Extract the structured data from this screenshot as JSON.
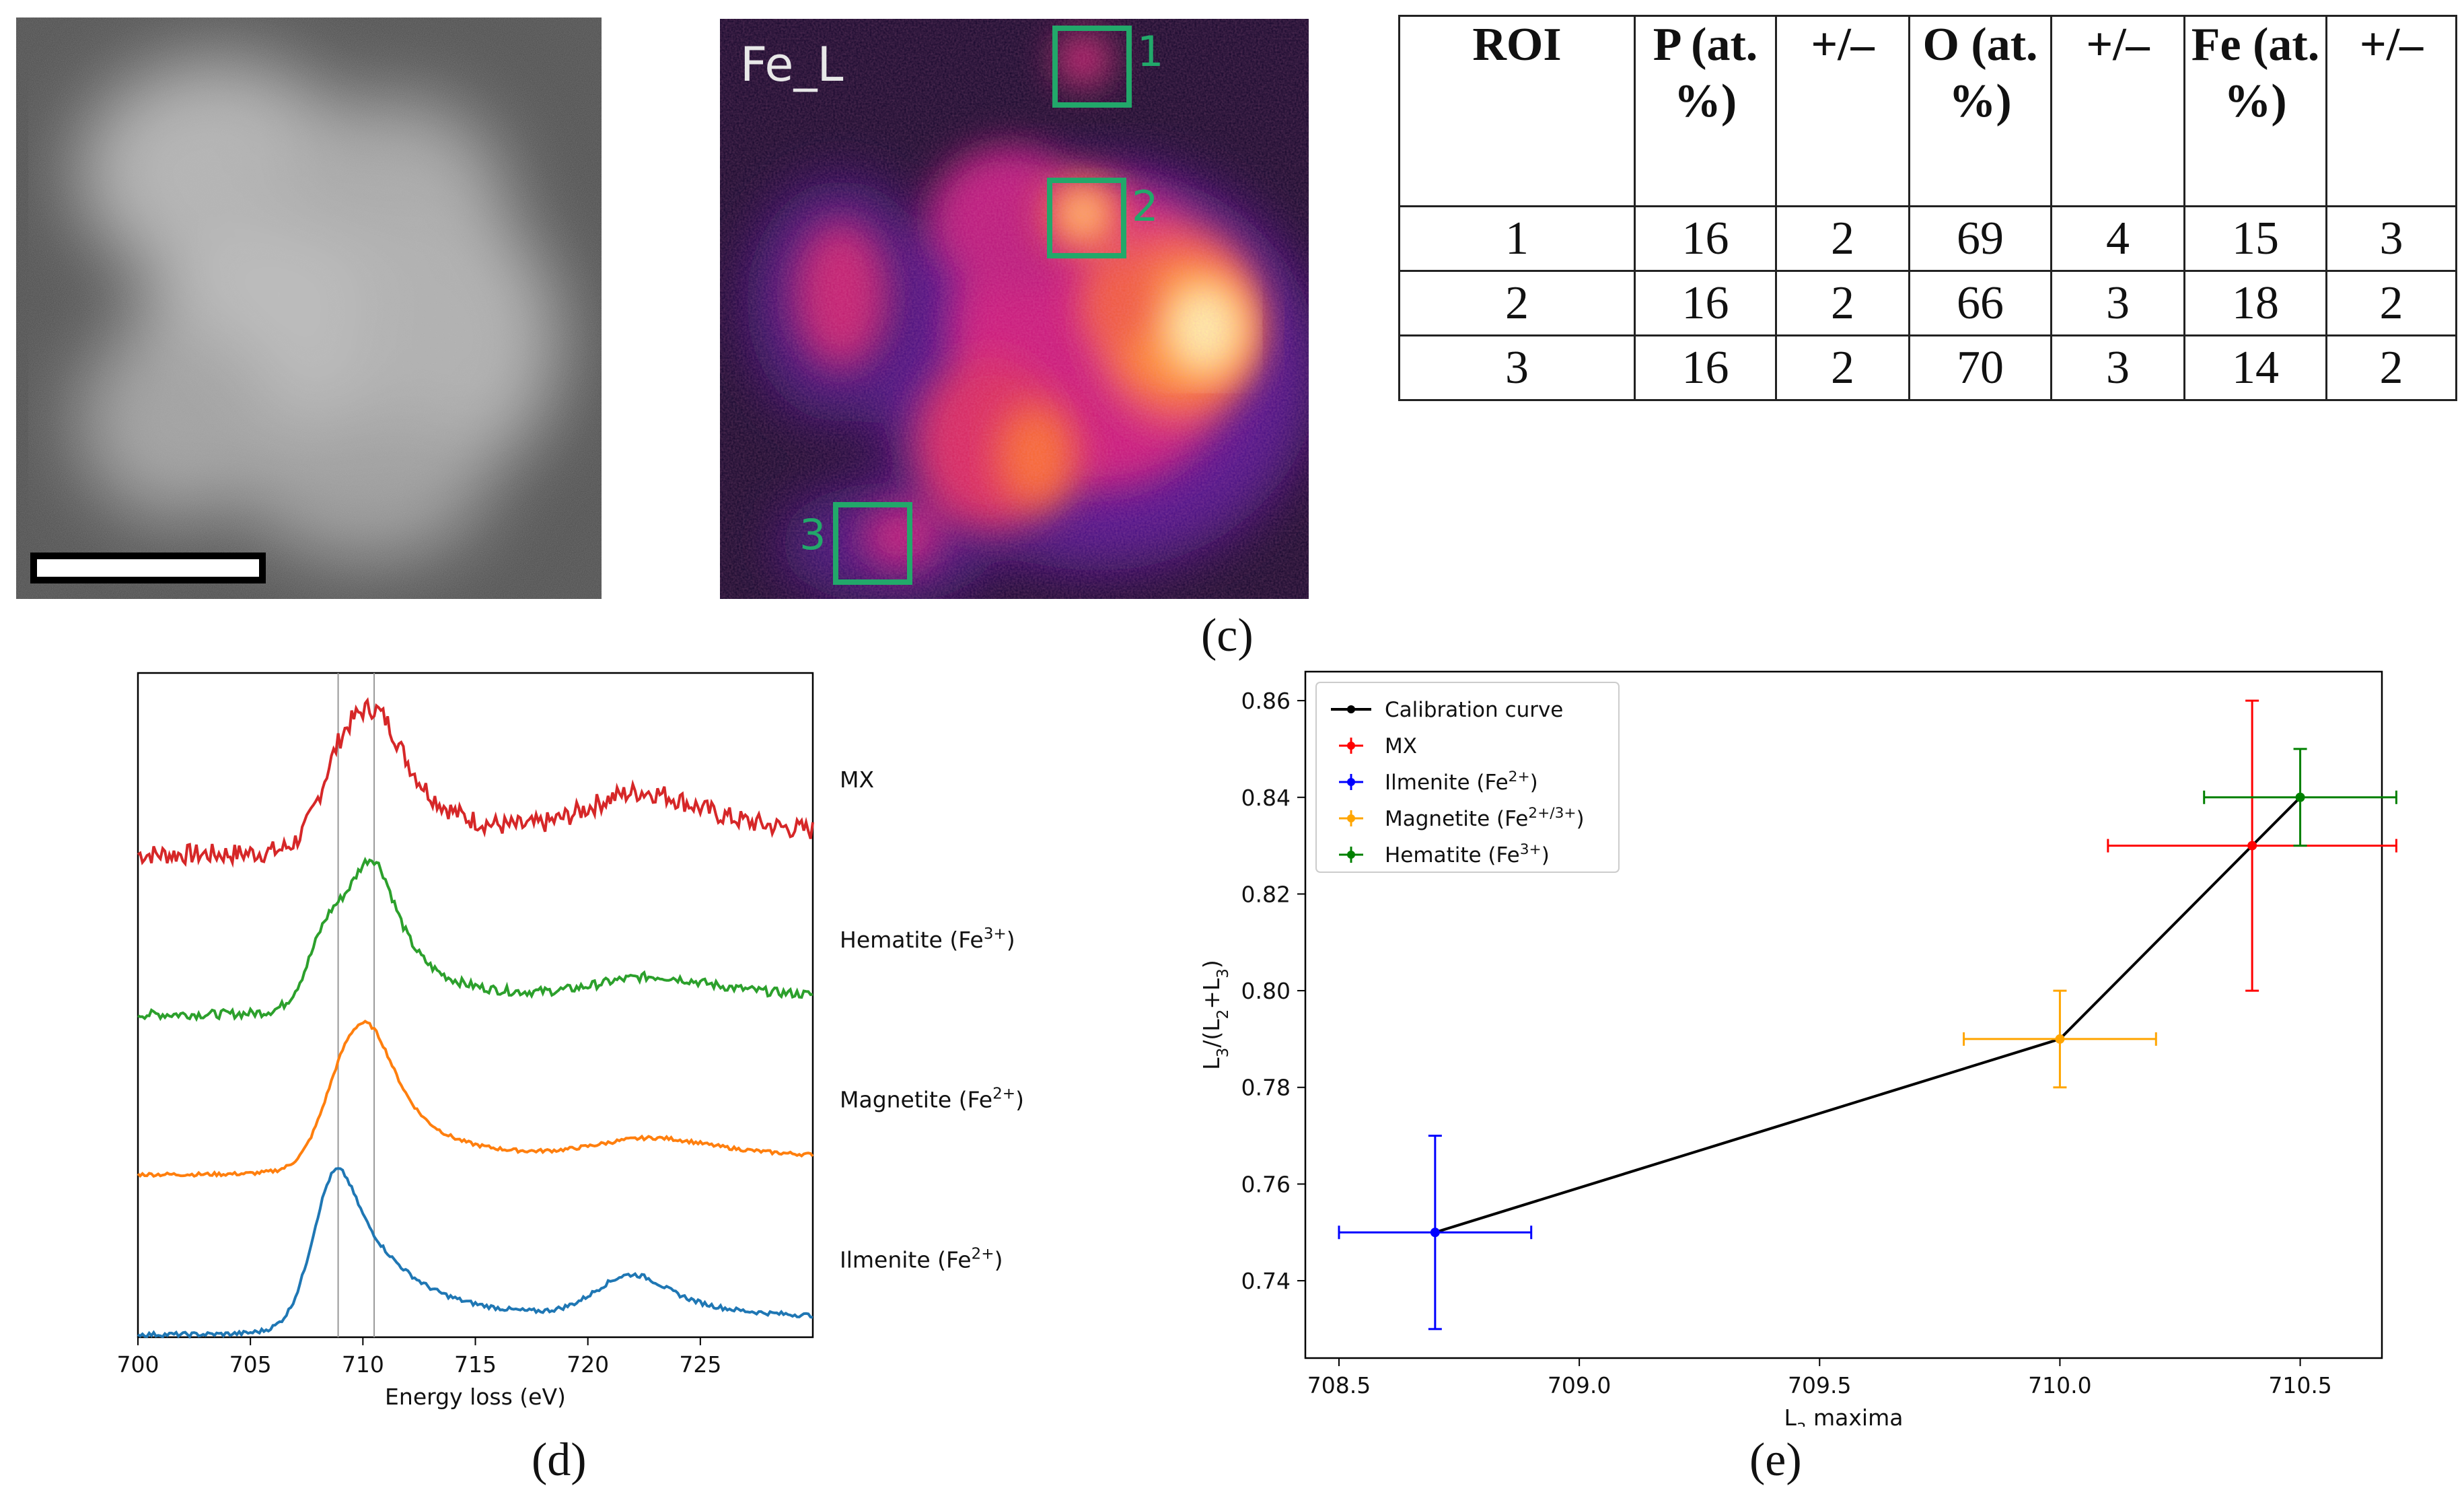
{
  "panel_b": {
    "label": "Fe_L",
    "roi_numbers": [
      "1",
      "2",
      "3"
    ]
  },
  "table": {
    "headers": [
      "ROI",
      "P (at. %)",
      "+/–",
      "O (at. %)",
      "+/–",
      "Fe (at. %)",
      "+/–"
    ],
    "rows": [
      [
        "1",
        "16",
        "2",
        "69",
        "4",
        "15",
        "3"
      ],
      [
        "2",
        "16",
        "2",
        "66",
        "3",
        "18",
        "2"
      ],
      [
        "3",
        "16",
        "2",
        "70",
        "3",
        "14",
        "2"
      ]
    ]
  },
  "panel_labels": {
    "c": "(c)",
    "d": "(d)",
    "e": "(e)"
  },
  "chart_data": [
    {
      "type": "line",
      "title": "",
      "xlabel": "Energy loss (eV)",
      "ylabel": "",
      "xlim": [
        700,
        730
      ],
      "x_ticks": [
        "700",
        "705",
        "710",
        "715",
        "720",
        "725"
      ],
      "reference_lines_x": [
        708.9,
        710.5
      ],
      "series": [
        {
          "name": "MX",
          "color": "#d62728",
          "offset": 3,
          "peaks": [
            [
              708.9,
              0.35,
              0.9
            ],
            [
              710.6,
              0.75,
              1.3
            ],
            [
              722.5,
              0.3,
              2.5
            ]
          ],
          "noise": 0.07
        },
        {
          "name": "Hematite (Fe3+)",
          "color": "#2ca02c",
          "offset": 2,
          "peaks": [
            [
              708.5,
              0.5,
              0.9
            ],
            [
              710.5,
              0.8,
              1.0
            ],
            [
              723.0,
              0.14,
              2.5
            ]
          ],
          "noise": 0.03
        },
        {
          "name": "Magnetite (Fe2+)",
          "color": "#ff7f0e",
          "offset": 1,
          "peaks": [
            [
              709.0,
              0.3,
              1.0
            ],
            [
              710.3,
              0.75,
              1.2
            ],
            [
              723.0,
              0.13,
              2.5
            ]
          ],
          "noise": 0.012
        },
        {
          "name": "Ilmenite (Fe2+)",
          "color": "#1f77b4",
          "offset": 0,
          "peaks": [
            [
              708.8,
              0.88,
              1.0
            ],
            [
              710.6,
              0.22,
              2.0
            ],
            [
              722.0,
              0.28,
              1.6
            ]
          ],
          "noise": 0.015
        }
      ],
      "legend_labels": [
        "MX",
        "Hematite (Fe3+)",
        "Magnetite (Fe2+)",
        "Ilmenite (Fe2+)"
      ]
    },
    {
      "type": "scatter",
      "title": "",
      "xlabel": "L3 maxima",
      "ylabel": "L3/(L2+L3)",
      "xlim": [
        708.43,
        710.67
      ],
      "ylim": [
        0.724,
        0.866
      ],
      "x_ticks": [
        "708.5",
        "709.0",
        "709.5",
        "710.0",
        "710.5"
      ],
      "y_ticks": [
        "0.74",
        "0.76",
        "0.78",
        "0.80",
        "0.82",
        "0.84",
        "0.86"
      ],
      "calibration_curve": {
        "name": "Calibration curve",
        "x": [
          708.7,
          710.0,
          710.4,
          710.5
        ],
        "y": [
          0.75,
          0.79,
          0.83,
          0.84
        ]
      },
      "points": [
        {
          "name": "MX",
          "color": "#ff0000",
          "x": 710.4,
          "y": 0.83,
          "xerr": 0.3,
          "yerr": 0.03
        },
        {
          "name": "Ilmenite (Fe2+)",
          "color": "#0000ff",
          "x": 708.7,
          "y": 0.75,
          "xerr": 0.2,
          "yerr": 0.02
        },
        {
          "name": "Magnetite (Fe2+/3+)",
          "color": "#ffa500",
          "x": 710.0,
          "y": 0.79,
          "xerr": 0.2,
          "yerr": 0.01
        },
        {
          "name": "Hematite (Fe3+)",
          "color": "#008000",
          "x": 710.5,
          "y": 0.84,
          "xerr": 0.2,
          "yerr": 0.01
        }
      ]
    }
  ]
}
